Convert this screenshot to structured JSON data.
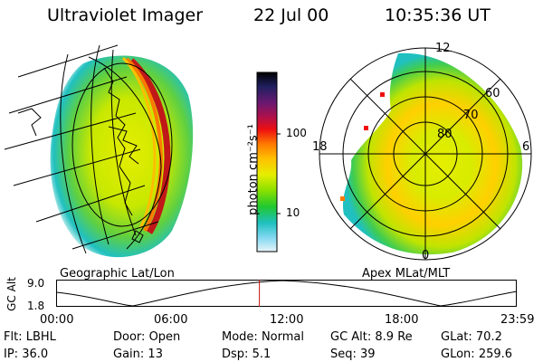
{
  "header": {
    "instrument": "Ultraviolet Imager",
    "date": "22 Jul 00",
    "time": "10:35:36 UT"
  },
  "left_panel": {
    "caption": "Geographic Lat/Lon"
  },
  "right_panel": {
    "caption": "Apex MLat/MLT",
    "mlt_labels": {
      "top": "12",
      "left": "18",
      "right": "6",
      "bottom": "0"
    },
    "lat_labels": [
      "60",
      "70",
      "80"
    ]
  },
  "colorbar": {
    "unit": "photon cm⁻²s⁻¹",
    "ticks": [
      "100",
      "10"
    ],
    "colors": [
      "#000000",
      "#202060",
      "#6a1870",
      "#b0104a",
      "#ee1010",
      "#ff7a00",
      "#ffbf00",
      "#e6ee00",
      "#88e000",
      "#20c830",
      "#20c0c0",
      "#80d8f0",
      "#e8f4fa"
    ]
  },
  "altitude_plot": {
    "ylabel": "GC Alt",
    "yticks": [
      "9.0",
      "1.8"
    ],
    "xticks": [
      "00:00",
      "06:00",
      "12:00",
      "18:00",
      "23:59"
    ],
    "marker_hour": 10.59
  },
  "status": {
    "row1": [
      {
        "label": "Flt:",
        "value": "LBHL"
      },
      {
        "label": "Door:",
        "value": "Open"
      },
      {
        "label": "Mode:",
        "value": "Normal"
      },
      {
        "label": "GC Alt:",
        "value": "8.9 Re"
      },
      {
        "label": "GLat:",
        "value": "70.2"
      }
    ],
    "row2": [
      {
        "label": "IP:",
        "value": "36.0"
      },
      {
        "label": "Gain:",
        "value": "13"
      },
      {
        "label": "Dsp:",
        "value": "5.1"
      },
      {
        "label": "Seq:",
        "value": "39"
      },
      {
        "label": "GLon:",
        "value": "259.6"
      }
    ]
  }
}
